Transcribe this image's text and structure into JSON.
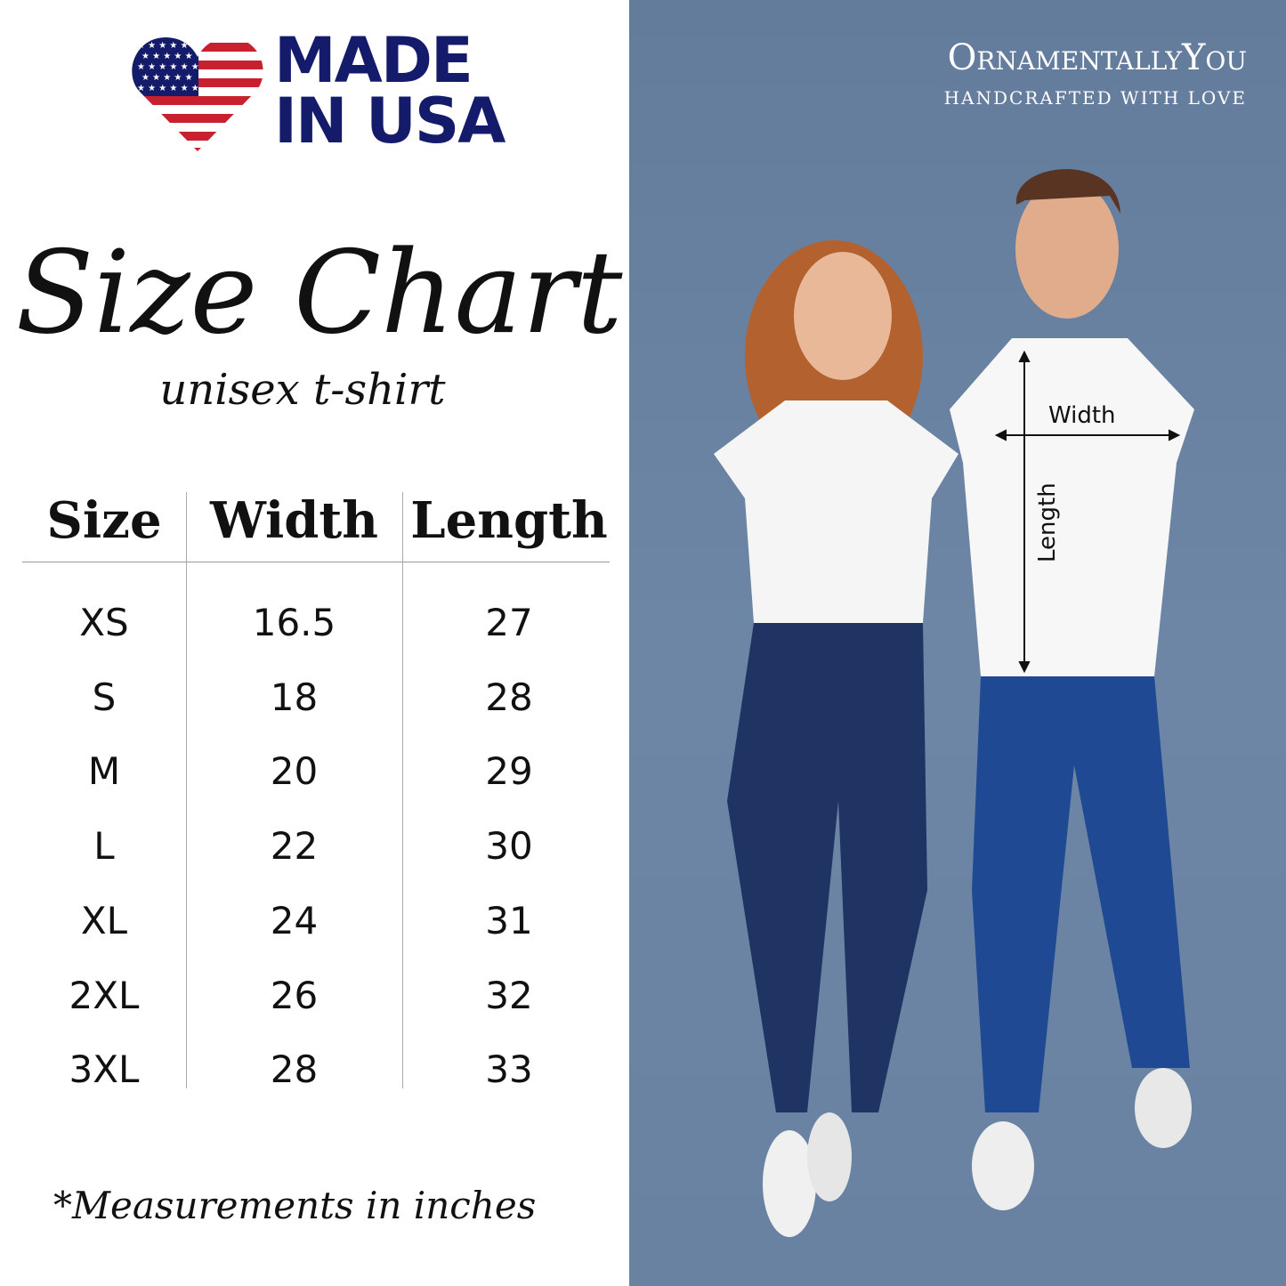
{
  "logo": {
    "line1": "MADE",
    "line2": "IN USA",
    "colors": {
      "navy": "#141b6b",
      "red": "#c8202f"
    }
  },
  "title": "Size Chart",
  "subtitle": "unisex t-shirt",
  "table": {
    "headers": [
      "Size",
      "Width",
      "Length"
    ],
    "rows": [
      [
        "XS",
        "16.5",
        "27"
      ],
      [
        "S",
        "18",
        "28"
      ],
      [
        "M",
        "20",
        "29"
      ],
      [
        "L",
        "22",
        "30"
      ],
      [
        "XL",
        "24",
        "31"
      ],
      [
        "2XL",
        "26",
        "32"
      ],
      [
        "3XL",
        "28",
        "33"
      ]
    ]
  },
  "note": "*Measurements in inches",
  "brand": {
    "name": "OrnamentallyYou",
    "tagline": "HANDCRAFTED WITH LOVE"
  },
  "photo": {
    "width_label": "Width",
    "length_label": "Length",
    "background": "#6d86a6"
  }
}
